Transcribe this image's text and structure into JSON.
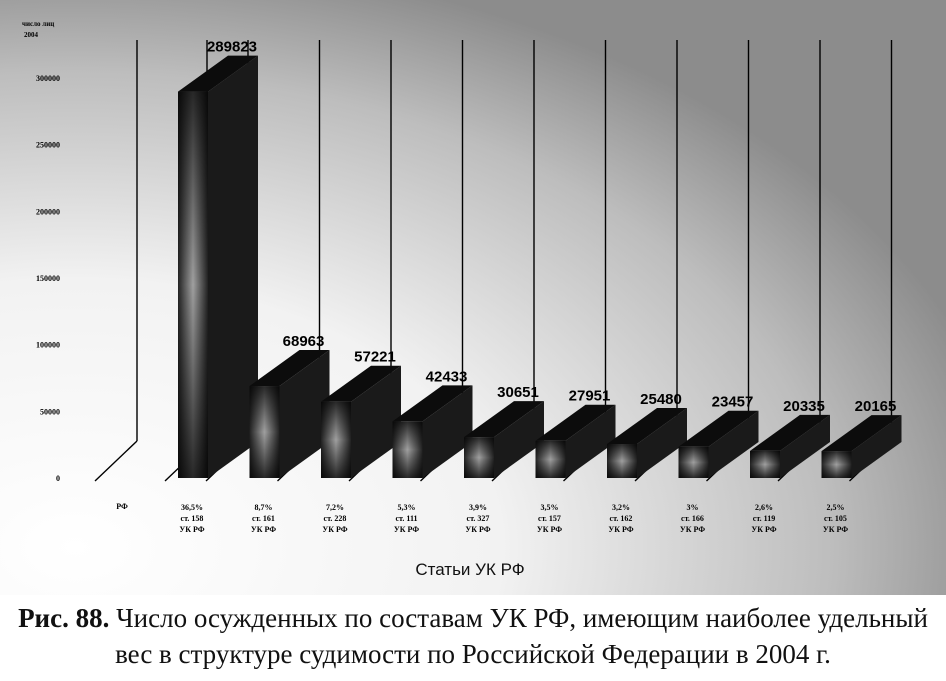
{
  "chart_data": {
    "type": "bar",
    "title": "",
    "ylabel": "число лиц",
    "xlabel": "Статьи УК РФ",
    "yticks": [
      "0",
      "50000",
      "100000",
      "150000",
      "200000",
      "250000",
      "300000"
    ],
    "ylim": [
      0,
      300000
    ],
    "first_category": "РФ",
    "categories": [
      [
        "36,5%",
        "ст. 158",
        "УК РФ"
      ],
      [
        "8,7%",
        "ст. 161",
        "УК РФ"
      ],
      [
        "7,2%",
        "ст. 228",
        "УК РФ"
      ],
      [
        "5,3%",
        "ст. 111",
        "УК РФ"
      ],
      [
        "3,9%",
        "ст. 327",
        "УК РФ"
      ],
      [
        "3,5%",
        "ст. 157",
        "УК РФ"
      ],
      [
        "3,2%",
        "ст. 162",
        "УК РФ"
      ],
      [
        "3%",
        "ст. 166",
        "УК РФ"
      ],
      [
        "2,6%",
        "ст. 119",
        "УК РФ"
      ],
      [
        "2,5%",
        "ст. 105",
        "УК РФ"
      ]
    ],
    "values": [
      289823,
      68963,
      57221,
      42433,
      30651,
      27951,
      25480,
      23457,
      20335,
      20165
    ],
    "value_labels": [
      "289823",
      "68963",
      "57221",
      "42433",
      "30651",
      "27951",
      "25480",
      "23457",
      "20335",
      "20165"
    ],
    "grid": true,
    "legend": "none",
    "colors": {
      "bar_top": "#0c0c0c",
      "bar_side": "#1a1a1a",
      "bar_front_edge": "#2a2a2a",
      "bar_front_center": "#9a9a9a",
      "grid": "#000000"
    }
  },
  "caption": {
    "label": "Рис. 88.",
    "text": " Число осужденных по составам УК РФ, имеющим наиболее удельный вес в структуре судимости по Российской Федерации в 2004 г."
  }
}
